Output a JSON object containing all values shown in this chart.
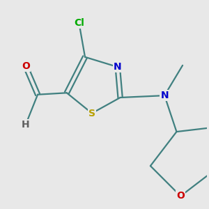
{
  "background_color": "#e8e8e8",
  "bond_color": "#408080",
  "atom_colors": {
    "S": "#b8a000",
    "N": "#0000cc",
    "Cl": "#00aa00",
    "O": "#cc0000",
    "C": "#408080",
    "H": "#606060"
  },
  "fontsize": 10,
  "lw": 1.6
}
